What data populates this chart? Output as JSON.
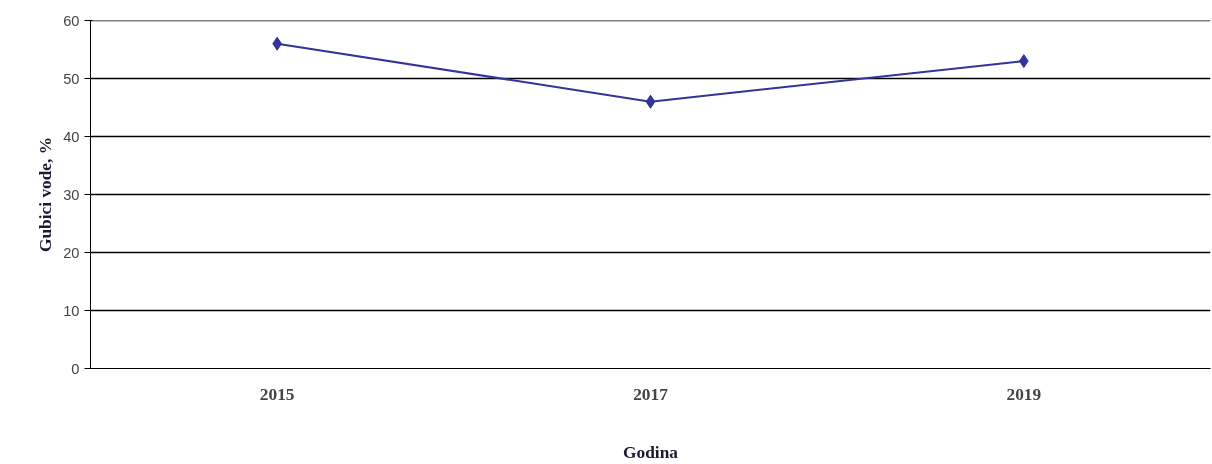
{
  "chart_data": {
    "type": "line",
    "xlabel": "Godina",
    "ylabel": "Gubici vode, %",
    "categories": [
      "2015",
      "2017",
      "2019"
    ],
    "series": [
      {
        "color": "#333399",
        "values": [
          56,
          46,
          53
        ]
      }
    ],
    "ylim": [
      0,
      60
    ],
    "yticks": [
      0,
      10,
      20,
      30,
      40,
      50,
      60
    ],
    "grid": "y",
    "marker": "diamond",
    "line_style": "solid"
  }
}
